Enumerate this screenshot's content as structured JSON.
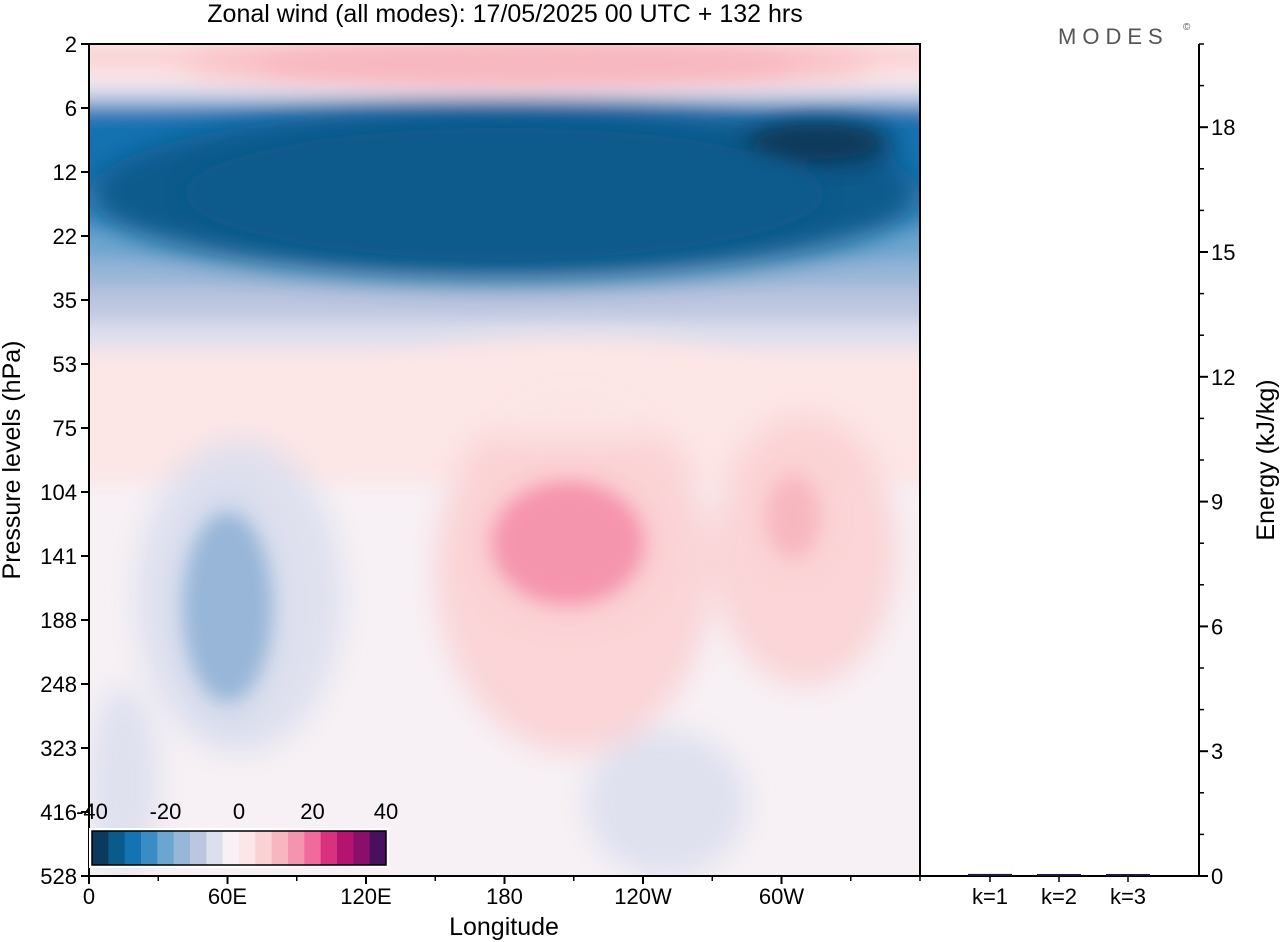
{
  "title": "Zonal wind (all modes):  17/05/2025  00 UTC  + 132 hrs",
  "logo": "MODES",
  "logo_mark": "©",
  "colors": {
    "neg_max": "#0b3a5c",
    "zero": "#f7f1f5",
    "pos_max": "#4a0f5e"
  },
  "chart_data": [
    {
      "type": "heatmap",
      "title": "Zonal wind (all modes):  17/05/2025  00 UTC  + 132 hrs",
      "xlabel": "Longitude",
      "ylabel": "Pressure levels (hPa)",
      "x_ticks": [
        "0",
        "60E",
        "120E",
        "180",
        "120W",
        "60W"
      ],
      "y_ticks": [
        "2",
        "6",
        "12",
        "22",
        "35",
        "53",
        "75",
        "104",
        "141",
        "188",
        "248",
        "323",
        "416",
        "528"
      ],
      "y_scale": "inverted, unevenly spaced levels",
      "colorbar": {
        "labels": [
          "-40",
          "-20",
          "0",
          "20",
          "40"
        ],
        "range": [
          -40,
          40
        ],
        "step": 5,
        "colors": [
          "#0b3a5c",
          "#0b5a8c",
          "#1473b2",
          "#3a8cc4",
          "#6aa6d0",
          "#97b6d8",
          "#bcc6e0",
          "#dcdfee",
          "#f7f1f5",
          "#fde6e6",
          "#fbd2d4",
          "#f8b7c0",
          "#f594ad",
          "#f06a9b",
          "#d9307f",
          "#b5136f",
          "#8a0f6a",
          "#4a0f5e"
        ]
      },
      "features": [
        {
          "name": "stratospheric easterly band",
          "lon": [
            0,
            360
          ],
          "p": [
            6,
            30
          ],
          "value": -35
        },
        {
          "name": "strongest easterly core",
          "lon": [
            280,
            350
          ],
          "p": [
            7,
            11
          ],
          "value": -45
        },
        {
          "name": "upper westerly band",
          "lon": [
            40,
            340
          ],
          "p": [
            2,
            4
          ],
          "value": 15
        },
        {
          "name": "tropospheric westerly maximum",
          "lon": [
            165,
            250
          ],
          "p": [
            90,
            190
          ],
          "value": 22
        },
        {
          "name": "secondary westerly maximum",
          "lon": [
            290,
            320
          ],
          "p": [
            90,
            150
          ],
          "value": 15
        },
        {
          "name": "tropospheric easterly minimum",
          "lon": [
            35,
            85
          ],
          "p": [
            100,
            300
          ],
          "value": -15
        }
      ]
    },
    {
      "type": "bar",
      "categories": [
        "k=1",
        "k=2",
        "k=3"
      ],
      "values": [
        0.05,
        0.03,
        0.02
      ],
      "ylabel": "Energy (kJ/kg)",
      "ylim": [
        0,
        20
      ],
      "y_ticks": [
        "0",
        "3",
        "6",
        "9",
        "12",
        "15",
        "18"
      ]
    }
  ]
}
